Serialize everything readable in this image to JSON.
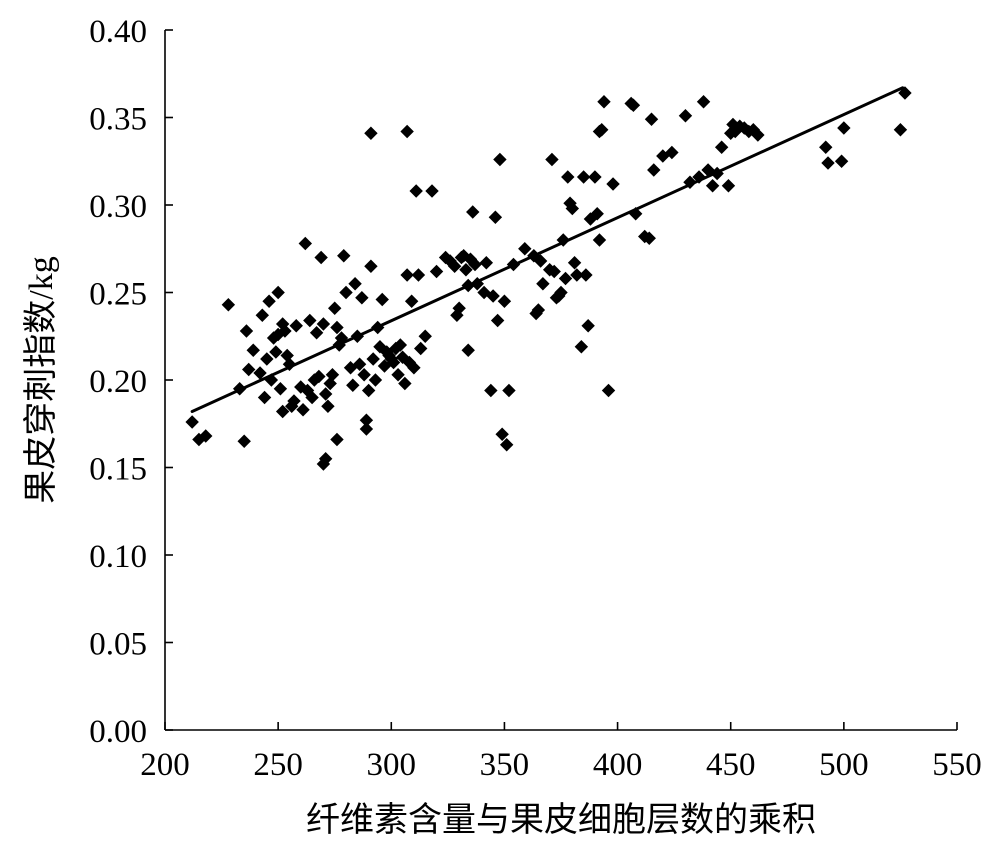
{
  "chart_data": {
    "type": "scatter",
    "title": "",
    "xlabel": "纤维素含量与果皮细胞层数的乘积",
    "ylabel": "果皮穿刺指数/kg",
    "xlim": [
      200,
      550
    ],
    "ylim": [
      0.0,
      0.4
    ],
    "x_ticks": [
      "200",
      "250",
      "300",
      "350",
      "400",
      "450",
      "500",
      "550"
    ],
    "y_ticks": [
      "0.00",
      "0.05",
      "0.10",
      "0.15",
      "0.20",
      "0.25",
      "0.30",
      "0.35",
      "0.40"
    ],
    "grid": false,
    "legend": "none",
    "marker_color": "#000000",
    "trendline": {
      "x": [
        212,
        526
      ],
      "y": [
        0.182,
        0.367
      ]
    },
    "points": [
      [
        212,
        0.176
      ],
      [
        215,
        0.166
      ],
      [
        218,
        0.168
      ],
      [
        228,
        0.243
      ],
      [
        233,
        0.195
      ],
      [
        235,
        0.165
      ],
      [
        236,
        0.228
      ],
      [
        237,
        0.206
      ],
      [
        239,
        0.217
      ],
      [
        242,
        0.204
      ],
      [
        243,
        0.237
      ],
      [
        244,
        0.19
      ],
      [
        245,
        0.212
      ],
      [
        246,
        0.245
      ],
      [
        247,
        0.2
      ],
      [
        248,
        0.224
      ],
      [
        249,
        0.216
      ],
      [
        250,
        0.226
      ],
      [
        251,
        0.195
      ],
      [
        252,
        0.232
      ],
      [
        254,
        0.214
      ],
      [
        255,
        0.209
      ],
      [
        252,
        0.182
      ],
      [
        256,
        0.185
      ],
      [
        250,
        0.25
      ],
      [
        253,
        0.228
      ],
      [
        257,
        0.188
      ],
      [
        258,
        0.231
      ],
      [
        260,
        0.196
      ],
      [
        261,
        0.183
      ],
      [
        262,
        0.278
      ],
      [
        263,
        0.194
      ],
      [
        264,
        0.234
      ],
      [
        265,
        0.19
      ],
      [
        266,
        0.2
      ],
      [
        267,
        0.227
      ],
      [
        268,
        0.202
      ],
      [
        269,
        0.27
      ],
      [
        270,
        0.232
      ],
      [
        271,
        0.192
      ],
      [
        271,
        0.155
      ],
      [
        270,
        0.152
      ],
      [
        272,
        0.185
      ],
      [
        273,
        0.198
      ],
      [
        274,
        0.203
      ],
      [
        275,
        0.241
      ],
      [
        276,
        0.23
      ],
      [
        276,
        0.166
      ],
      [
        277,
        0.22
      ],
      [
        278,
        0.224
      ],
      [
        279,
        0.271
      ],
      [
        280,
        0.25
      ],
      [
        282,
        0.207
      ],
      [
        283,
        0.197
      ],
      [
        284,
        0.255
      ],
      [
        285,
        0.225
      ],
      [
        286,
        0.209
      ],
      [
        287,
        0.247
      ],
      [
        288,
        0.203
      ],
      [
        289,
        0.177
      ],
      [
        289,
        0.172
      ],
      [
        290,
        0.194
      ],
      [
        291,
        0.341
      ],
      [
        291,
        0.265
      ],
      [
        292,
        0.212
      ],
      [
        293,
        0.2
      ],
      [
        294,
        0.23
      ],
      [
        295,
        0.219
      ],
      [
        296,
        0.246
      ],
      [
        297,
        0.208
      ],
      [
        298,
        0.216
      ],
      [
        299,
        0.214
      ],
      [
        300,
        0.212
      ],
      [
        301,
        0.21
      ],
      [
        302,
        0.218
      ],
      [
        303,
        0.203
      ],
      [
        304,
        0.22
      ],
      [
        305,
        0.213
      ],
      [
        306,
        0.198
      ],
      [
        307,
        0.26
      ],
      [
        307,
        0.342
      ],
      [
        308,
        0.21
      ],
      [
        309,
        0.245
      ],
      [
        310,
        0.207
      ],
      [
        311,
        0.308
      ],
      [
        312,
        0.26
      ],
      [
        313,
        0.218
      ],
      [
        315,
        0.225
      ],
      [
        318,
        0.308
      ],
      [
        320,
        0.262
      ],
      [
        324,
        0.27
      ],
      [
        326,
        0.268
      ],
      [
        328,
        0.265
      ],
      [
        329,
        0.237
      ],
      [
        330,
        0.241
      ],
      [
        331,
        0.27
      ],
      [
        332,
        0.271
      ],
      [
        333,
        0.263
      ],
      [
        334,
        0.254
      ],
      [
        334,
        0.217
      ],
      [
        335,
        0.269
      ],
      [
        336,
        0.296
      ],
      [
        337,
        0.266
      ],
      [
        338,
        0.255
      ],
      [
        341,
        0.25
      ],
      [
        342,
        0.267
      ],
      [
        344,
        0.194
      ],
      [
        345,
        0.248
      ],
      [
        346,
        0.293
      ],
      [
        347,
        0.234
      ],
      [
        348,
        0.326
      ],
      [
        349,
        0.169
      ],
      [
        350,
        0.245
      ],
      [
        351,
        0.163
      ],
      [
        352,
        0.194
      ],
      [
        354,
        0.266
      ],
      [
        359,
        0.275
      ],
      [
        363,
        0.271
      ],
      [
        364,
        0.238
      ],
      [
        365,
        0.24
      ],
      [
        366,
        0.268
      ],
      [
        367,
        0.255
      ],
      [
        370,
        0.263
      ],
      [
        371,
        0.326
      ],
      [
        372,
        0.262
      ],
      [
        373,
        0.247
      ],
      [
        374,
        0.248
      ],
      [
        375,
        0.25
      ],
      [
        376,
        0.28
      ],
      [
        377,
        0.258
      ],
      [
        378,
        0.316
      ],
      [
        379,
        0.301
      ],
      [
        380,
        0.298
      ],
      [
        381,
        0.267
      ],
      [
        382,
        0.26
      ],
      [
        384,
        0.219
      ],
      [
        385,
        0.316
      ],
      [
        386,
        0.26
      ],
      [
        387,
        0.231
      ],
      [
        388,
        0.292
      ],
      [
        390,
        0.316
      ],
      [
        391,
        0.295
      ],
      [
        392,
        0.28
      ],
      [
        392,
        0.342
      ],
      [
        393,
        0.343
      ],
      [
        394,
        0.359
      ],
      [
        396,
        0.194
      ],
      [
        398,
        0.312
      ],
      [
        406,
        0.358
      ],
      [
        407,
        0.357
      ],
      [
        408,
        0.295
      ],
      [
        412,
        0.282
      ],
      [
        414,
        0.281
      ],
      [
        415,
        0.349
      ],
      [
        416,
        0.32
      ],
      [
        420,
        0.328
      ],
      [
        424,
        0.33
      ],
      [
        430,
        0.351
      ],
      [
        432,
        0.313
      ],
      [
        436,
        0.316
      ],
      [
        438,
        0.359
      ],
      [
        440,
        0.32
      ],
      [
        442,
        0.311
      ],
      [
        444,
        0.318
      ],
      [
        446,
        0.333
      ],
      [
        449,
        0.311
      ],
      [
        450,
        0.341
      ],
      [
        451,
        0.346
      ],
      [
        452,
        0.342
      ],
      [
        454,
        0.345
      ],
      [
        456,
        0.344
      ],
      [
        458,
        0.342
      ],
      [
        460,
        0.343
      ],
      [
        462,
        0.34
      ],
      [
        492,
        0.333
      ],
      [
        493,
        0.324
      ],
      [
        499,
        0.325
      ],
      [
        500,
        0.344
      ],
      [
        525,
        0.343
      ],
      [
        527,
        0.364
      ]
    ]
  }
}
